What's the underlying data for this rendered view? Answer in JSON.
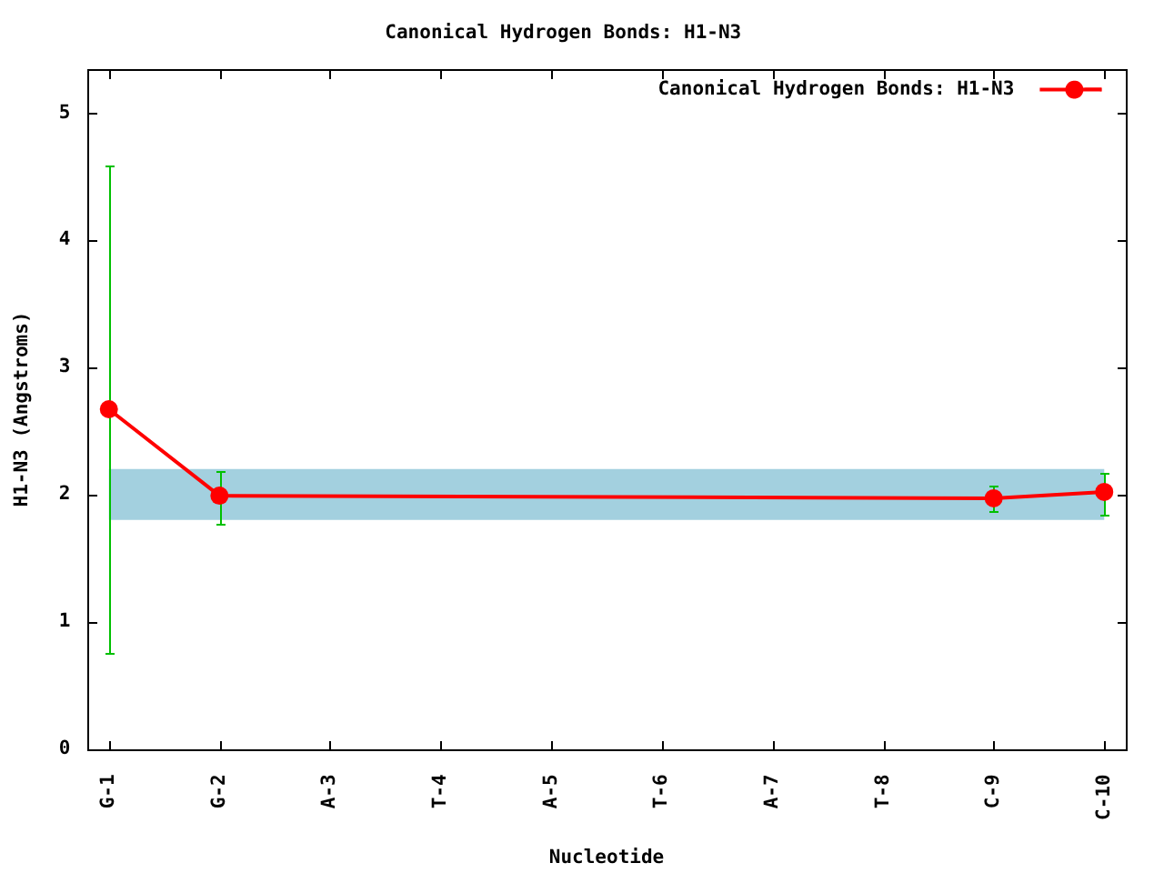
{
  "chart_data": {
    "type": "line",
    "title": "Canonical Hydrogen Bonds: H1-N3",
    "xlabel": "Nucleotide",
    "ylabel": "H1-N3 (Angstroms)",
    "categories": [
      "G-1",
      "G-2",
      "A-3",
      "T-4",
      "A-5",
      "T-6",
      "A-7",
      "T-8",
      "C-9",
      "C-10"
    ],
    "series": [
      {
        "name": "Canonical Hydrogen Bonds: H1-N3",
        "color": "#ff0000",
        "values": [
          2.67,
          1.99,
          null,
          null,
          null,
          null,
          null,
          null,
          1.97,
          2.02
        ],
        "errors": [
          [
            0.75,
            4.58
          ],
          [
            1.77,
            2.18
          ],
          null,
          null,
          null,
          null,
          null,
          null,
          [
            1.87,
            2.07
          ],
          [
            1.84,
            2.17
          ]
        ]
      }
    ],
    "ylim": [
      0,
      5.34
    ],
    "yticks": [
      0,
      1,
      2,
      3,
      4,
      5
    ],
    "bands": [
      {
        "axis": "y",
        "from": 1.8,
        "to": 2.2,
        "color": "#a3d0df"
      }
    ],
    "legend": "top right",
    "marker": "circle",
    "line_style": "solid"
  }
}
